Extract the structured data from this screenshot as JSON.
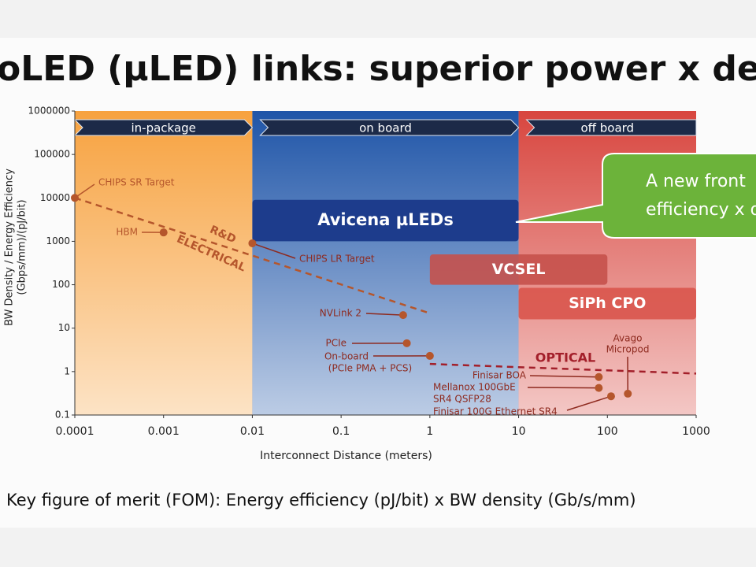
{
  "title": "oLED (µLED) links: superior power x den",
  "chart_data": {
    "type": "scatter",
    "x_label": "Interconnect Distance (meters)",
    "y_label": [
      "BW Density / Energy Efficiency",
      "(Gbps/mm)/(pJ/bit)"
    ],
    "log_x": true,
    "log_y": true,
    "xlim": [
      0.0001,
      1000
    ],
    "ylim": [
      0.1,
      1000000
    ],
    "xticks": [
      0.0001,
      0.001,
      0.01,
      0.1,
      1,
      10,
      100,
      1000
    ],
    "yticks": [
      0.1,
      1,
      10,
      100,
      1000,
      10000,
      100000,
      1000000
    ],
    "point_color": "#b5562c",
    "regions": [
      {
        "name": "in-package",
        "x": [
          0.0001,
          0.01
        ],
        "color": "#f7a23f"
      },
      {
        "name": "on board",
        "x": [
          0.01,
          10
        ],
        "color": "#1f55a8"
      },
      {
        "name": "off board",
        "x": [
          10,
          1000
        ],
        "color": "#d8463f"
      }
    ],
    "bands": [
      {
        "label": "Avicena µLEDs",
        "x": [
          0.01,
          10
        ],
        "y": [
          1000,
          9000
        ],
        "color": "#1d3c8c"
      },
      {
        "label": "VCSEL",
        "x": [
          1,
          100
        ],
        "y": [
          100,
          500
        ],
        "color": "#c5514b"
      },
      {
        "label": "SiPh CPO",
        "x": [
          10,
          1000
        ],
        "y": [
          16,
          85
        ],
        "color": "#d9554d"
      }
    ],
    "trends": [
      {
        "label": [
          "R&D",
          "ELECTRICAL"
        ],
        "x": [
          0.0001,
          1
        ],
        "y": [
          10000,
          22
        ],
        "color": "#b5562c"
      },
      {
        "label": [
          "OPTICAL"
        ],
        "x": [
          1,
          1000
        ],
        "y": [
          1.5,
          0.9
        ],
        "color": "#a31f2a"
      }
    ],
    "points": [
      {
        "label": [
          "CHIPS SR Target"
        ],
        "x": 0.0001,
        "y": 10000
      },
      {
        "label": [
          "HBM"
        ],
        "x": 0.001,
        "y": 1600
      },
      {
        "label": [
          "CHIPS LR Target"
        ],
        "x": 0.01,
        "y": 900
      },
      {
        "label": [
          "NVLink 2"
        ],
        "x": 0.5,
        "y": 20
      },
      {
        "label": [
          "PCIe"
        ],
        "x": 0.55,
        "y": 4.5
      },
      {
        "label": [
          "On-board",
          "(PCIe  PMA + PCS)"
        ],
        "x": 1,
        "y": 2.3
      },
      {
        "label": [
          "Finisar BOA"
        ],
        "x": 80,
        "y": 0.75
      },
      {
        "label": [
          "Mellanox 100GbE",
          "SR4 QSFP28"
        ],
        "x": 80,
        "y": 0.42
      },
      {
        "label": [
          "Finisar 100G Ethernet SR4"
        ],
        "x": 110,
        "y": 0.27
      },
      {
        "label": [
          "Avago",
          "Micropod"
        ],
        "x": 170,
        "y": 0.31
      }
    ],
    "callout": [
      "A new front",
      "efficiency x d"
    ]
  },
  "footer": "Key figure of merit (FOM): Energy efficiency (pJ/bit) x BW density (Gb/s/mm)"
}
